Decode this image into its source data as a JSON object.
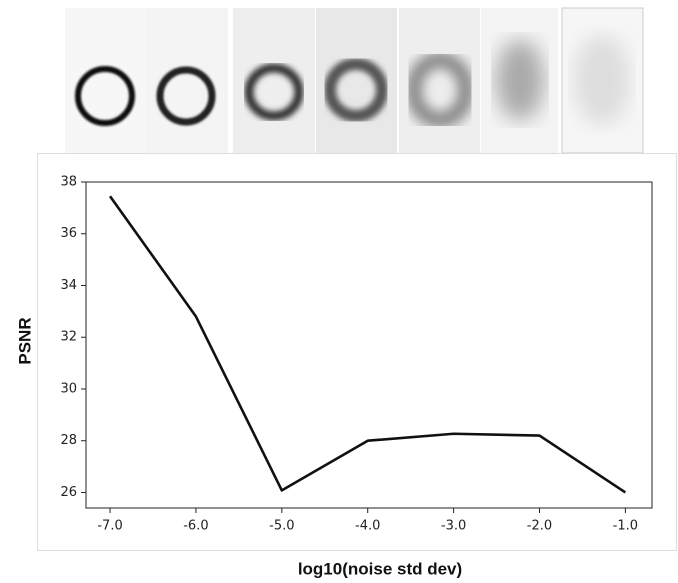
{
  "chart_data": {
    "type": "line",
    "xlabel": "log10(noise std dev)",
    "ylabel": "PSNR",
    "x": [
      -7,
      -6,
      -5,
      -4,
      -3,
      -2,
      -1
    ],
    "values": [
      37.45,
      32.8,
      26.08,
      28.0,
      28.27,
      28.2,
      26.0
    ],
    "color": "#111111",
    "xlim": [
      -7.28,
      -0.69
    ],
    "ylim": [
      25.4,
      38.0
    ],
    "xticks": [
      {
        "value": -7,
        "label": "-7.0"
      },
      {
        "value": -6,
        "label": "-6.0"
      },
      {
        "value": -5,
        "label": "-5.0"
      },
      {
        "value": -4,
        "label": "-4.0"
      },
      {
        "value": -3,
        "label": "-3.0"
      },
      {
        "value": -2,
        "label": "-2.0"
      },
      {
        "value": -1,
        "label": "-1.0"
      }
    ],
    "yticks": [
      26,
      28,
      30,
      32,
      34,
      36,
      38
    ]
  }
}
